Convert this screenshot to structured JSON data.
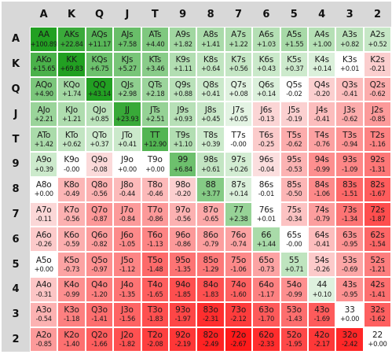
{
  "headers": [
    "A",
    "K",
    "Q",
    "J",
    "T",
    "9",
    "8",
    "7",
    "6",
    "5",
    "4",
    "3",
    "2"
  ],
  "colors": {
    "header_bg": "#d8d8d8",
    "pos_strong": "#22a022",
    "pos_light": "#e9f6e9",
    "neutral": "#ffffff",
    "neg_light": "#fbe3e3",
    "neg_strong": "#ff1a1a"
  },
  "rows": [
    {
      "label": "A",
      "cells": [
        {
          "hand": "AA",
          "ev": "+100.89"
        },
        {
          "hand": "AKs",
          "ev": "+22.84"
        },
        {
          "hand": "AQs",
          "ev": "+11.17"
        },
        {
          "hand": "AJs",
          "ev": "+7.58"
        },
        {
          "hand": "ATs",
          "ev": "+4.40"
        },
        {
          "hand": "A9s",
          "ev": "+1.82"
        },
        {
          "hand": "A8s",
          "ev": "+1.41"
        },
        {
          "hand": "A7s",
          "ev": "+1.22"
        },
        {
          "hand": "A6s",
          "ev": "+1.03"
        },
        {
          "hand": "A5s",
          "ev": "+1.55"
        },
        {
          "hand": "A4s",
          "ev": "+1.00"
        },
        {
          "hand": "A3s",
          "ev": "+0.82"
        },
        {
          "hand": "A2s",
          "ev": "+0.52"
        }
      ]
    },
    {
      "label": "K",
      "cells": [
        {
          "hand": "AKo",
          "ev": "+15.65"
        },
        {
          "hand": "KK",
          "ev": "+69.83"
        },
        {
          "hand": "KQs",
          "ev": "+6.75"
        },
        {
          "hand": "KJs",
          "ev": "+5.27"
        },
        {
          "hand": "KTs",
          "ev": "+3.46"
        },
        {
          "hand": "K9s",
          "ev": "+1.11"
        },
        {
          "hand": "K8s",
          "ev": "+0.64"
        },
        {
          "hand": "K7s",
          "ev": "+0.56"
        },
        {
          "hand": "K6s",
          "ev": "+0.43"
        },
        {
          "hand": "K5s",
          "ev": "+0.37"
        },
        {
          "hand": "K4s",
          "ev": "+0.14"
        },
        {
          "hand": "K3s",
          "ev": "+0.01"
        },
        {
          "hand": "K2s",
          "ev": "-0.21"
        }
      ]
    },
    {
      "label": "Q",
      "cells": [
        {
          "hand": "AQo",
          "ev": "+4.90"
        },
        {
          "hand": "KQo",
          "ev": "+1.74"
        },
        {
          "hand": "QQ",
          "ev": "+43.14"
        },
        {
          "hand": "QJs",
          "ev": "+2.98"
        },
        {
          "hand": "QTs",
          "ev": "+2.18"
        },
        {
          "hand": "Q9s",
          "ev": "+0.88"
        },
        {
          "hand": "Q8s",
          "ev": "+0.41"
        },
        {
          "hand": "Q7s",
          "ev": "+0.08"
        },
        {
          "hand": "Q6s",
          "ev": "+0.14"
        },
        {
          "hand": "Q5s",
          "ev": "-0.02"
        },
        {
          "hand": "Q4s",
          "ev": "-0.20"
        },
        {
          "hand": "Q3s",
          "ev": "-0.41"
        },
        {
          "hand": "Q2s",
          "ev": "-0.62"
        }
      ]
    },
    {
      "label": "J",
      "cells": [
        {
          "hand": "AJo",
          "ev": "+2.21"
        },
        {
          "hand": "KJo",
          "ev": "+1.21"
        },
        {
          "hand": "QJo",
          "ev": "+0.85"
        },
        {
          "hand": "JJ",
          "ev": "+23.93"
        },
        {
          "hand": "JTs",
          "ev": "+2.51"
        },
        {
          "hand": "J9s",
          "ev": "+0.93"
        },
        {
          "hand": "J8s",
          "ev": "+0.45"
        },
        {
          "hand": "J7s",
          "ev": "+0.05"
        },
        {
          "hand": "J6s",
          "ev": "-0.13"
        },
        {
          "hand": "J5s",
          "ev": "-0.19"
        },
        {
          "hand": "J4s",
          "ev": "-0.41"
        },
        {
          "hand": "J3s",
          "ev": "-0.62"
        },
        {
          "hand": "J2s",
          "ev": "-0.85"
        }
      ]
    },
    {
      "label": "T",
      "cells": [
        {
          "hand": "ATo",
          "ev": "+1.42"
        },
        {
          "hand": "KTo",
          "ev": "+0.62"
        },
        {
          "hand": "QTo",
          "ev": "+0.37"
        },
        {
          "hand": "JTo",
          "ev": "+0.41"
        },
        {
          "hand": "TT",
          "ev": "+12.90"
        },
        {
          "hand": "T9s",
          "ev": "+1.10"
        },
        {
          "hand": "T8s",
          "ev": "+0.39"
        },
        {
          "hand": "T7s",
          "ev": "-0.00"
        },
        {
          "hand": "T6s",
          "ev": "-0.25"
        },
        {
          "hand": "T5s",
          "ev": "-0.62"
        },
        {
          "hand": "T4s",
          "ev": "-0.76"
        },
        {
          "hand": "T3s",
          "ev": "-0.94"
        },
        {
          "hand": "T2s",
          "ev": "-1.16"
        }
      ]
    },
    {
      "label": "9",
      "cells": [
        {
          "hand": "A9o",
          "ev": "+0.39"
        },
        {
          "hand": "K9o",
          "ev": "-0.00"
        },
        {
          "hand": "Q9o",
          "ev": "-0.08"
        },
        {
          "hand": "J9o",
          "ev": "+0.00"
        },
        {
          "hand": "T9o",
          "ev": "+0.00"
        },
        {
          "hand": "99",
          "ev": "+6.84"
        },
        {
          "hand": "98s",
          "ev": "+0.61"
        },
        {
          "hand": "97s",
          "ev": "+0.26"
        },
        {
          "hand": "96s",
          "ev": "-0.04"
        },
        {
          "hand": "95s",
          "ev": "-0.53"
        },
        {
          "hand": "94s",
          "ev": "-0.99"
        },
        {
          "hand": "93s",
          "ev": "-1.09"
        },
        {
          "hand": "92s",
          "ev": "-1.31"
        }
      ]
    },
    {
      "label": "8",
      "cells": [
        {
          "hand": "A8o",
          "ev": "+0.00"
        },
        {
          "hand": "K8o",
          "ev": "-0.49"
        },
        {
          "hand": "Q8o",
          "ev": "-0.56"
        },
        {
          "hand": "J8o",
          "ev": "-0.44"
        },
        {
          "hand": "T8o",
          "ev": "-0.46"
        },
        {
          "hand": "98o",
          "ev": "-0.20"
        },
        {
          "hand": "88",
          "ev": "+3.77"
        },
        {
          "hand": "87s",
          "ev": "+0.14"
        },
        {
          "hand": "86s",
          "ev": "-0.01"
        },
        {
          "hand": "85s",
          "ev": "-0.50"
        },
        {
          "hand": "84s",
          "ev": "-1.06"
        },
        {
          "hand": "83s",
          "ev": "-1.51"
        },
        {
          "hand": "82s",
          "ev": "-1.67"
        }
      ]
    },
    {
      "label": "7",
      "cells": [
        {
          "hand": "A7o",
          "ev": "-0.11"
        },
        {
          "hand": "K7o",
          "ev": "-0.56"
        },
        {
          "hand": "Q7o",
          "ev": "-0.87"
        },
        {
          "hand": "J7o",
          "ev": "-0.84"
        },
        {
          "hand": "T7o",
          "ev": "-0.86"
        },
        {
          "hand": "97o",
          "ev": "-0.56"
        },
        {
          "hand": "87o",
          "ev": "-0.65"
        },
        {
          "hand": "77",
          "ev": "+2.38"
        },
        {
          "hand": "76s",
          "ev": "+0.01"
        },
        {
          "hand": "75s",
          "ev": "-0.34"
        },
        {
          "hand": "74s",
          "ev": "-0.79"
        },
        {
          "hand": "73s",
          "ev": "-1.34"
        },
        {
          "hand": "72s",
          "ev": "-1.87"
        }
      ]
    },
    {
      "label": "6",
      "cells": [
        {
          "hand": "A6o",
          "ev": "-0.26"
        },
        {
          "hand": "K6o",
          "ev": "-0.59"
        },
        {
          "hand": "Q6o",
          "ev": "-0.82"
        },
        {
          "hand": "J6o",
          "ev": "-1.05"
        },
        {
          "hand": "T6o",
          "ev": "-1.13"
        },
        {
          "hand": "96o",
          "ev": "-0.86"
        },
        {
          "hand": "86o",
          "ev": "-0.79"
        },
        {
          "hand": "76o",
          "ev": "-0.74"
        },
        {
          "hand": "66",
          "ev": "+1.44"
        },
        {
          "hand": "65s",
          "ev": "-0.00"
        },
        {
          "hand": "64s",
          "ev": "-0.41"
        },
        {
          "hand": "63s",
          "ev": "-0.95"
        },
        {
          "hand": "62s",
          "ev": "-1.54"
        }
      ]
    },
    {
      "label": "5",
      "cells": [
        {
          "hand": "A5o",
          "ev": "+0.00"
        },
        {
          "hand": "K5o",
          "ev": "-0.73"
        },
        {
          "hand": "Q5o",
          "ev": "-0.97"
        },
        {
          "hand": "J5o",
          "ev": "-1.12"
        },
        {
          "hand": "T5o",
          "ev": "-1.48"
        },
        {
          "hand": "95o",
          "ev": "-1.35"
        },
        {
          "hand": "85o",
          "ev": "-1.29"
        },
        {
          "hand": "75o",
          "ev": "-1.06"
        },
        {
          "hand": "65o",
          "ev": "-0.73"
        },
        {
          "hand": "55",
          "ev": "+0.71"
        },
        {
          "hand": "54s",
          "ev": "-0.26"
        },
        {
          "hand": "53s",
          "ev": "-0.69"
        },
        {
          "hand": "52s",
          "ev": "-1.21"
        }
      ]
    },
    {
      "label": "4",
      "cells": [
        {
          "hand": "A4o",
          "ev": "-0.31"
        },
        {
          "hand": "K4o",
          "ev": "-0.99"
        },
        {
          "hand": "Q4o",
          "ev": "-1.20"
        },
        {
          "hand": "J4o",
          "ev": "-1.35"
        },
        {
          "hand": "T4o",
          "ev": "-1.65"
        },
        {
          "hand": "94o",
          "ev": "-1.85"
        },
        {
          "hand": "84o",
          "ev": "-1.83"
        },
        {
          "hand": "74o",
          "ev": "-1.60"
        },
        {
          "hand": "64o",
          "ev": "-1.17"
        },
        {
          "hand": "54o",
          "ev": "-0.99"
        },
        {
          "hand": "44",
          "ev": "+0.10"
        },
        {
          "hand": "43s",
          "ev": "-0.95"
        },
        {
          "hand": "42s",
          "ev": "-1.41"
        }
      ]
    },
    {
      "label": "3",
      "cells": [
        {
          "hand": "A3o",
          "ev": "-0.54"
        },
        {
          "hand": "K3o",
          "ev": "-1.18"
        },
        {
          "hand": "Q3o",
          "ev": "-1.41"
        },
        {
          "hand": "J3o",
          "ev": "-1.56"
        },
        {
          "hand": "T3o",
          "ev": "-1.83"
        },
        {
          "hand": "93o",
          "ev": "-1.97"
        },
        {
          "hand": "83o",
          "ev": "-2.31"
        },
        {
          "hand": "73o",
          "ev": "-2.12"
        },
        {
          "hand": "63o",
          "ev": "-1.70"
        },
        {
          "hand": "53o",
          "ev": "-1.43"
        },
        {
          "hand": "43o",
          "ev": "-1.69"
        },
        {
          "hand": "33",
          "ev": "+0.00"
        },
        {
          "hand": "32s",
          "ev": "-1.62"
        }
      ]
    },
    {
      "label": "2",
      "cells": [
        {
          "hand": "A2o",
          "ev": "-0.85"
        },
        {
          "hand": "K2o",
          "ev": "-1.40"
        },
        {
          "hand": "Q2o",
          "ev": "-1.66"
        },
        {
          "hand": "J2o",
          "ev": "-1.82"
        },
        {
          "hand": "T2o",
          "ev": "-2.08"
        },
        {
          "hand": "92o",
          "ev": "-2.19"
        },
        {
          "hand": "82o",
          "ev": "-2.49"
        },
        {
          "hand": "72o",
          "ev": "-2.67"
        },
        {
          "hand": "62o",
          "ev": "-2.33"
        },
        {
          "hand": "52o",
          "ev": "-1.95"
        },
        {
          "hand": "42o",
          "ev": "-2.17"
        },
        {
          "hand": "32o",
          "ev": "-2.42"
        },
        {
          "hand": "22",
          "ev": "+0.00"
        }
      ]
    }
  ]
}
